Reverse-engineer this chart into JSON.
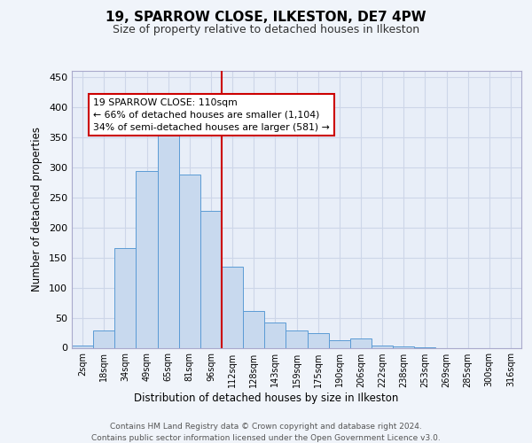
{
  "title": "19, SPARROW CLOSE, ILKESTON, DE7 4PW",
  "subtitle": "Size of property relative to detached houses in Ilkeston",
  "xlabel": "Distribution of detached houses by size in Ilkeston",
  "ylabel": "Number of detached properties",
  "footer_line1": "Contains HM Land Registry data © Crown copyright and database right 2024.",
  "footer_line2": "Contains public sector information licensed under the Open Government Licence v3.0.",
  "bar_labels": [
    "2sqm",
    "18sqm",
    "34sqm",
    "49sqm",
    "65sqm",
    "81sqm",
    "96sqm",
    "112sqm",
    "128sqm",
    "143sqm",
    "159sqm",
    "175sqm",
    "190sqm",
    "206sqm",
    "222sqm",
    "238sqm",
    "253sqm",
    "269sqm",
    "285sqm",
    "300sqm",
    "316sqm"
  ],
  "bar_values": [
    3,
    29,
    166,
    293,
    365,
    288,
    228,
    135,
    61,
    42,
    29,
    25,
    12,
    15,
    4,
    2,
    1,
    0,
    0,
    0,
    0
  ],
  "bar_color": "#c8d9ee",
  "bar_edge_color": "#5b9bd5",
  "grid_color": "#cdd6e8",
  "background_color": "#e8eef8",
  "figure_background": "#f0f4fa",
  "annotation_text": "19 SPARROW CLOSE: 110sqm\n← 66% of detached houses are smaller (1,104)\n34% of semi-detached houses are larger (581) →",
  "annotation_box_color": "#ffffff",
  "annotation_box_edge_color": "#cc0000",
  "vline_x": 6.5,
  "vline_color": "#cc0000",
  "ylim": [
    0,
    460
  ],
  "yticks": [
    0,
    50,
    100,
    150,
    200,
    250,
    300,
    350,
    400,
    450
  ]
}
